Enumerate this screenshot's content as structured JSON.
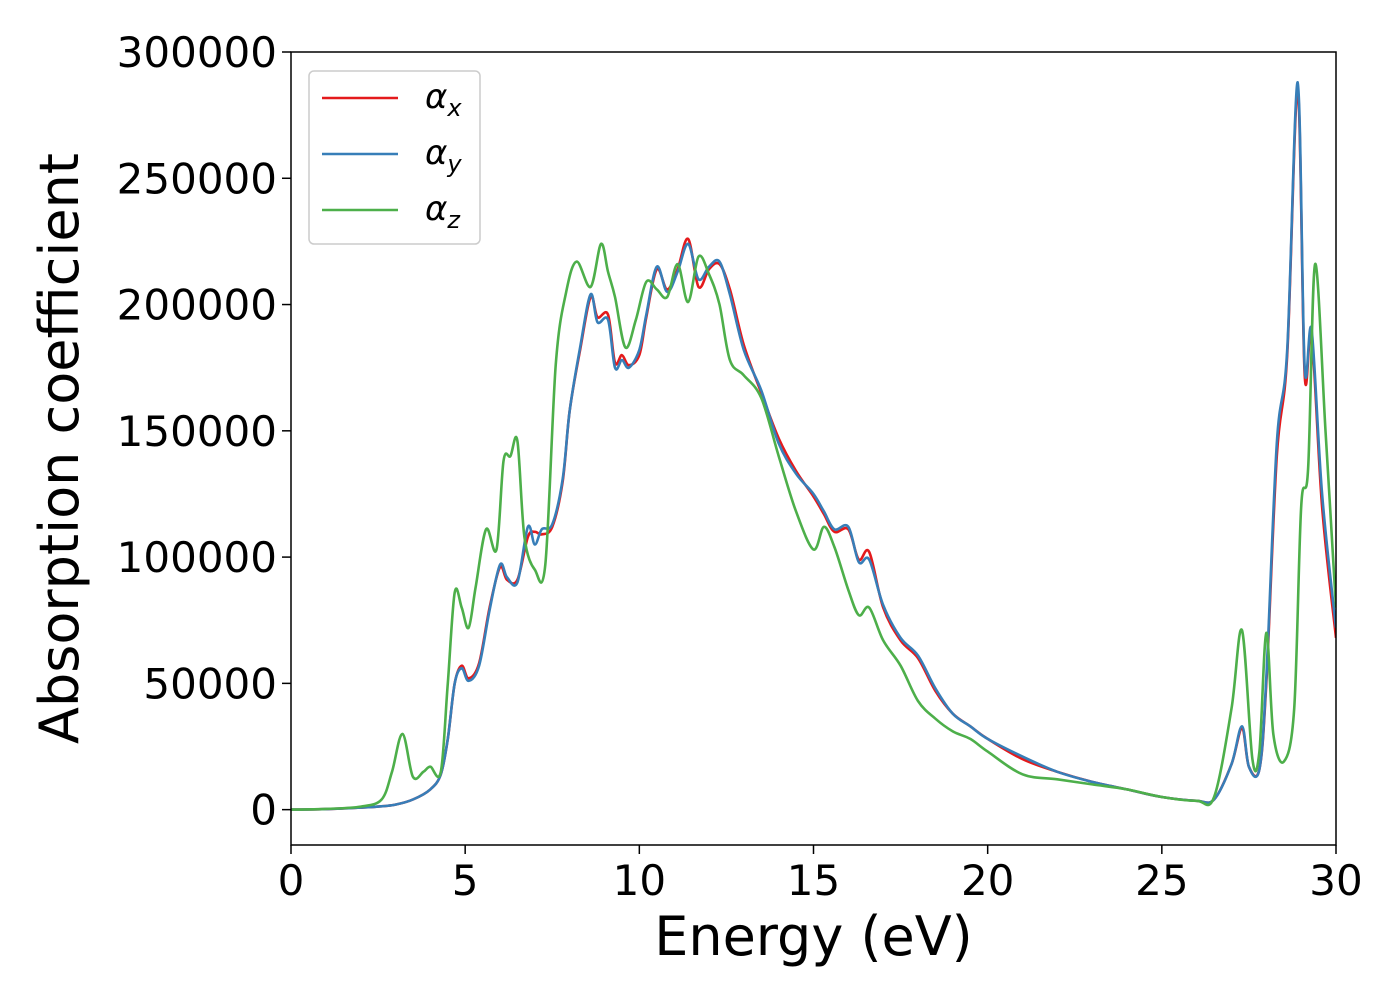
{
  "chart_data": {
    "type": "line",
    "title": "",
    "xlabel": "Energy (eV)",
    "ylabel": "Absorption coefficient",
    "xlim": [
      0,
      30
    ],
    "ylim": [
      -14000,
      300000
    ],
    "xticks": [
      0,
      5,
      10,
      15,
      20,
      25,
      30
    ],
    "yticks": [
      0,
      50000,
      100000,
      150000,
      200000,
      250000,
      300000
    ],
    "grid": false,
    "legend_position": "top-left",
    "series": [
      {
        "name": "α_x",
        "name_base": "α",
        "name_sub": "x",
        "color": "#e41a1c",
        "x": [
          0,
          1,
          2,
          2.5,
          3,
          3.5,
          4,
          4.3,
          4.5,
          4.7,
          4.9,
          5.1,
          5.4,
          5.7,
          6.0,
          6.2,
          6.5,
          6.8,
          7.0,
          7.2,
          7.5,
          7.8,
          8.0,
          8.3,
          8.6,
          8.8,
          9.1,
          9.3,
          9.5,
          9.7,
          10.0,
          10.2,
          10.5,
          10.8,
          11.1,
          11.4,
          11.7,
          12.0,
          12.3,
          12.6,
          13.0,
          13.5,
          14.0,
          14.5,
          15.0,
          15.3,
          15.6,
          16.0,
          16.3,
          16.6,
          17.0,
          17.5,
          18.0,
          18.5,
          19.0,
          19.5,
          20.0,
          21.0,
          22.0,
          23.0,
          24.0,
          25.0,
          26.0,
          26.5,
          27.0,
          27.3,
          27.5,
          27.8,
          28.0,
          28.3,
          28.6,
          28.9,
          29.1,
          29.3,
          29.6,
          30.0
        ],
        "values": [
          0,
          200,
          800,
          1200,
          2000,
          4000,
          8000,
          14000,
          28000,
          50000,
          57000,
          52000,
          58000,
          80000,
          96000,
          91000,
          91000,
          108000,
          110000,
          109000,
          112000,
          130000,
          158000,
          182000,
          203000,
          195000,
          196000,
          177000,
          180000,
          176000,
          180000,
          195000,
          214000,
          206000,
          214000,
          226000,
          207000,
          214000,
          216000,
          206000,
          184000,
          165000,
          147000,
          134000,
          124000,
          117000,
          110000,
          111000,
          99000,
          102000,
          80000,
          67000,
          60000,
          47000,
          38000,
          33000,
          28000,
          20000,
          15000,
          11000,
          8000,
          5000,
          3500,
          4000,
          18000,
          32000,
          17000,
          16000,
          50000,
          140000,
          180000,
          285000,
          172000,
          188000,
          120000,
          68000
        ]
      },
      {
        "name": "α_y",
        "name_base": "α",
        "name_sub": "y",
        "color": "#377eb8",
        "x": [
          0,
          1,
          2,
          2.5,
          3,
          3.5,
          4,
          4.3,
          4.5,
          4.7,
          4.9,
          5.1,
          5.4,
          5.7,
          6.0,
          6.2,
          6.5,
          6.8,
          7.0,
          7.2,
          7.5,
          7.8,
          8.0,
          8.3,
          8.6,
          8.8,
          9.1,
          9.3,
          9.5,
          9.7,
          10.0,
          10.2,
          10.5,
          10.8,
          11.1,
          11.4,
          11.7,
          12.0,
          12.3,
          12.6,
          13.0,
          13.5,
          14.0,
          14.5,
          15.0,
          15.3,
          15.6,
          16.0,
          16.3,
          16.6,
          17.0,
          17.5,
          18.0,
          18.5,
          19.0,
          19.5,
          20.0,
          21.0,
          22.0,
          23.0,
          24.0,
          25.0,
          26.0,
          26.5,
          27.0,
          27.3,
          27.5,
          27.8,
          28.0,
          28.3,
          28.6,
          28.9,
          29.1,
          29.3,
          29.6,
          30.0
        ],
        "values": [
          0,
          200,
          800,
          1200,
          2000,
          4000,
          8000,
          14000,
          28000,
          50000,
          56000,
          51000,
          57000,
          79000,
          97000,
          92000,
          90000,
          112000,
          105000,
          111000,
          113000,
          131000,
          158000,
          183000,
          204000,
          193000,
          194000,
          175000,
          178000,
          175000,
          182000,
          196000,
          215000,
          205000,
          213000,
          224000,
          210000,
          215000,
          217000,
          204000,
          182000,
          166000,
          145000,
          133000,
          125000,
          118000,
          111000,
          112000,
          98000,
          99000,
          81000,
          68000,
          61000,
          48000,
          38000,
          33000,
          28000,
          21000,
          15000,
          11000,
          8000,
          5000,
          3500,
          4000,
          18000,
          33000,
          17000,
          16000,
          52000,
          145000,
          182000,
          288000,
          175000,
          190000,
          125000,
          72000
        ]
      },
      {
        "name": "α_z",
        "name_base": "α",
        "name_sub": "z",
        "color": "#4daf4a",
        "x": [
          0,
          1,
          2,
          2.6,
          2.9,
          3.2,
          3.5,
          3.8,
          4.0,
          4.3,
          4.5,
          4.7,
          4.9,
          5.1,
          5.3,
          5.6,
          5.9,
          6.1,
          6.3,
          6.5,
          6.7,
          7.0,
          7.3,
          7.6,
          7.9,
          8.2,
          8.6,
          8.9,
          9.1,
          9.3,
          9.6,
          9.9,
          10.2,
          10.5,
          10.8,
          11.1,
          11.4,
          11.7,
          12.0,
          12.3,
          12.6,
          13.0,
          13.5,
          14.0,
          14.5,
          15.0,
          15.3,
          15.6,
          16.0,
          16.3,
          16.6,
          17.0,
          17.5,
          18.0,
          18.5,
          19.0,
          19.5,
          20.0,
          21.0,
          22.0,
          23.0,
          24.0,
          25.0,
          26.0,
          26.5,
          27.0,
          27.3,
          27.6,
          27.8,
          28.0,
          28.2,
          28.5,
          28.8,
          29.0,
          29.2,
          29.4,
          29.7,
          30.0
        ],
        "values": [
          0,
          300,
          1200,
          4000,
          15000,
          30000,
          13000,
          15000,
          17000,
          15000,
          50000,
          86000,
          80000,
          72000,
          88000,
          111000,
          103000,
          138000,
          140000,
          146000,
          108000,
          95000,
          97000,
          176000,
          205000,
          217000,
          207000,
          224000,
          213000,
          203000,
          183000,
          194000,
          209000,
          206000,
          203000,
          216000,
          201000,
          219000,
          212000,
          200000,
          178000,
          172000,
          163000,
          140000,
          118000,
          103000,
          112000,
          104000,
          87000,
          77000,
          80000,
          67000,
          57000,
          43000,
          36000,
          31000,
          28000,
          23000,
          14000,
          12000,
          10000,
          8000,
          5000,
          3500,
          5000,
          40000,
          71000,
          20000,
          23000,
          70000,
          30000,
          19000,
          40000,
          120000,
          135000,
          216000,
          150000,
          80000
        ]
      }
    ]
  }
}
